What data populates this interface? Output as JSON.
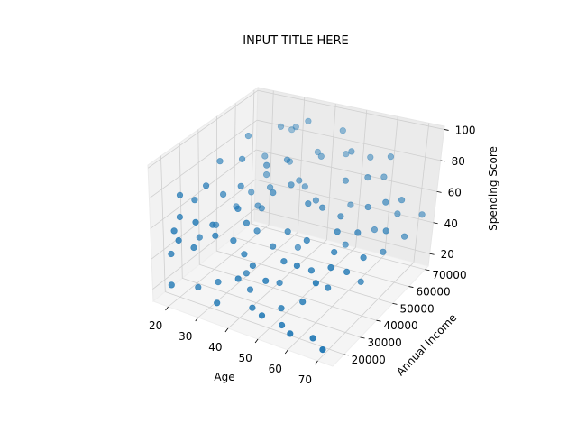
{
  "chart_data": {
    "type": "scatter",
    "projection": "3d",
    "title": "INPUT TITLE HERE",
    "xlabel": "Age",
    "ylabel": "Annual Income",
    "zlabel": "Spending Score",
    "xlim": [
      15,
      75
    ],
    "ylim": [
      13000,
      72000
    ],
    "zlim": [
      12,
      102
    ],
    "xticks": [
      20,
      30,
      40,
      50,
      60,
      70
    ],
    "yticks": [
      20000,
      30000,
      40000,
      50000,
      60000,
      70000
    ],
    "zticks": [
      20,
      40,
      60,
      80,
      100
    ],
    "grid": true,
    "marker_color": "#1f77b4",
    "points": [
      {
        "x": 18,
        "y": 19000,
        "z": 40
      },
      {
        "x": 20,
        "y": 21000,
        "z": 64
      },
      {
        "x": 21,
        "y": 16000,
        "z": 60
      },
      {
        "x": 19,
        "y": 23000,
        "z": 76
      },
      {
        "x": 22,
        "y": 26000,
        "z": 72
      },
      {
        "x": 23,
        "y": 15000,
        "z": 56
      },
      {
        "x": 24,
        "y": 29000,
        "z": 80
      },
      {
        "x": 25,
        "y": 20000,
        "z": 48
      },
      {
        "x": 26,
        "y": 35000,
        "z": 70
      },
      {
        "x": 27,
        "y": 18000,
        "z": 68
      },
      {
        "x": 28,
        "y": 42000,
        "z": 88
      },
      {
        "x": 29,
        "y": 24000,
        "z": 62
      },
      {
        "x": 30,
        "y": 38000,
        "z": 75
      },
      {
        "x": 31,
        "y": 22000,
        "z": 58
      },
      {
        "x": 32,
        "y": 33000,
        "z": 66
      },
      {
        "x": 33,
        "y": 47000,
        "z": 82
      },
      {
        "x": 34,
        "y": 27000,
        "z": 52
      },
      {
        "x": 35,
        "y": 55000,
        "z": 79
      },
      {
        "x": 36,
        "y": 31000,
        "z": 61
      },
      {
        "x": 37,
        "y": 44000,
        "z": 69
      },
      {
        "x": 22,
        "y": 40000,
        "z": 85
      },
      {
        "x": 24,
        "y": 52000,
        "z": 92
      },
      {
        "x": 26,
        "y": 58000,
        "z": 74
      },
      {
        "x": 28,
        "y": 63000,
        "z": 90
      },
      {
        "x": 30,
        "y": 68000,
        "z": 86
      },
      {
        "x": 33,
        "y": 60000,
        "z": 72
      },
      {
        "x": 35,
        "y": 66000,
        "z": 94
      },
      {
        "x": 38,
        "y": 57000,
        "z": 65
      },
      {
        "x": 40,
        "y": 49000,
        "z": 71
      },
      {
        "x": 42,
        "y": 62000,
        "z": 78
      },
      {
        "x": 44,
        "y": 70000,
        "z": 88
      },
      {
        "x": 46,
        "y": 53000,
        "z": 60
      },
      {
        "x": 48,
        "y": 45000,
        "z": 67
      },
      {
        "x": 50,
        "y": 65000,
        "z": 82
      },
      {
        "x": 52,
        "y": 59000,
        "z": 70
      },
      {
        "x": 54,
        "y": 69000,
        "z": 76
      },
      {
        "x": 56,
        "y": 50000,
        "z": 58
      },
      {
        "x": 58,
        "y": 61000,
        "z": 73
      },
      {
        "x": 60,
        "y": 67000,
        "z": 68
      },
      {
        "x": 62,
        "y": 55000,
        "z": 62
      },
      {
        "x": 64,
        "y": 46000,
        "z": 56
      },
      {
        "x": 66,
        "y": 58000,
        "z": 64
      },
      {
        "x": 68,
        "y": 64000,
        "z": 60
      },
      {
        "x": 70,
        "y": 52000,
        "z": 54
      },
      {
        "x": 69,
        "y": 41000,
        "z": 48
      },
      {
        "x": 67,
        "y": 35000,
        "z": 44
      },
      {
        "x": 65,
        "y": 29000,
        "z": 52
      },
      {
        "x": 63,
        "y": 24000,
        "z": 46
      },
      {
        "x": 61,
        "y": 38000,
        "z": 50
      },
      {
        "x": 59,
        "y": 43000,
        "z": 57
      },
      {
        "x": 57,
        "y": 32000,
        "z": 42
      },
      {
        "x": 55,
        "y": 27000,
        "z": 49
      },
      {
        "x": 53,
        "y": 36000,
        "z": 55
      },
      {
        "x": 51,
        "y": 48000,
        "z": 63
      },
      {
        "x": 49,
        "y": 30000,
        "z": 45
      },
      {
        "x": 47,
        "y": 23000,
        "z": 38
      },
      {
        "x": 45,
        "y": 39000,
        "z": 53
      },
      {
        "x": 43,
        "y": 34000,
        "z": 47
      },
      {
        "x": 41,
        "y": 26000,
        "z": 41
      },
      {
        "x": 39,
        "y": 21000,
        "z": 36
      },
      {
        "x": 37,
        "y": 28000,
        "z": 44
      },
      {
        "x": 36,
        "y": 37000,
        "z": 50
      },
      {
        "x": 34,
        "y": 43000,
        "z": 58
      },
      {
        "x": 32,
        "y": 51000,
        "z": 63
      },
      {
        "x": 31,
        "y": 46000,
        "z": 55
      },
      {
        "x": 29,
        "y": 54000,
        "z": 67
      },
      {
        "x": 27,
        "y": 49000,
        "z": 59
      },
      {
        "x": 25,
        "y": 44000,
        "z": 53
      },
      {
        "x": 23,
        "y": 36000,
        "z": 47
      },
      {
        "x": 21,
        "y": 30000,
        "z": 43
      },
      {
        "x": 19,
        "y": 17000,
        "z": 22
      },
      {
        "x": 25,
        "y": 22000,
        "z": 20
      },
      {
        "x": 30,
        "y": 25000,
        "z": 24
      },
      {
        "x": 33,
        "y": 19000,
        "z": 18
      },
      {
        "x": 36,
        "y": 31000,
        "z": 28
      },
      {
        "x": 39,
        "y": 28000,
        "z": 22
      },
      {
        "x": 42,
        "y": 24000,
        "z": 16
      },
      {
        "x": 46,
        "y": 33000,
        "z": 26
      },
      {
        "x": 48,
        "y": 19000,
        "z": 20
      },
      {
        "x": 50,
        "y": 27000,
        "z": 18
      },
      {
        "x": 53,
        "y": 22000,
        "z": 14
      },
      {
        "x": 56,
        "y": 29000,
        "z": 24
      },
      {
        "x": 58,
        "y": 18000,
        "z": 16
      },
      {
        "x": 61,
        "y": 35000,
        "z": 30
      },
      {
        "x": 64,
        "y": 21000,
        "z": 14
      },
      {
        "x": 67,
        "y": 44000,
        "z": 28
      },
      {
        "x": 70,
        "y": 16000,
        "z": 16
      },
      {
        "x": 44,
        "y": 47000,
        "z": 34
      },
      {
        "x": 57,
        "y": 52000,
        "z": 38
      },
      {
        "x": 62,
        "y": 60000,
        "z": 42
      },
      {
        "x": 66,
        "y": 66000,
        "z": 48
      },
      {
        "x": 71,
        "y": 62000,
        "z": 40
      },
      {
        "x": 72,
        "y": 70000,
        "z": 46
      },
      {
        "x": 68,
        "y": 55000,
        "z": 36
      },
      {
        "x": 52,
        "y": 63000,
        "z": 50
      },
      {
        "x": 40,
        "y": 57000,
        "z": 62
      },
      {
        "x": 38,
        "y": 67000,
        "z": 74
      },
      {
        "x": 27,
        "y": 71000,
        "z": 80
      },
      {
        "x": 45,
        "y": 71000,
        "z": 72
      },
      {
        "x": 60,
        "y": 70000,
        "z": 78
      }
    ]
  }
}
